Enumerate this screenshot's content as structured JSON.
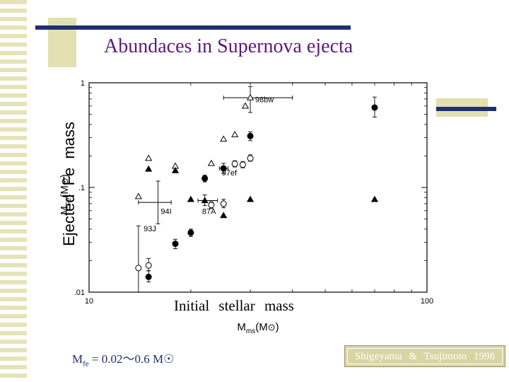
{
  "slide": {
    "title": "Abundaces in Supernova ejecta",
    "overlay_xlabel": "Initial  stellar  mass",
    "overlay_ylabel": "Ejected  Fe  mass",
    "formula": {
      "lead": "M",
      "sub": "fe",
      "rest": " = 0.02〜0.6 M",
      "sun_symbol": "☉"
    },
    "credit": "Shigeyama  &  Tsujimoto  1998",
    "colors": {
      "title": "#5a1a7a",
      "accent_bar": "#1e2f6e",
      "decor": "#e2dfb0"
    }
  },
  "chart_data": {
    "type": "scatter",
    "x_scale": "log",
    "y_scale": "log",
    "xlim": [
      10,
      100
    ],
    "ylim": [
      0.01,
      1
    ],
    "xlabel": {
      "main": "M",
      "sub": "ms",
      "suffix": "(M",
      "suffix_sub": "⊙",
      "close": ")"
    },
    "ylabel": {
      "main": "M",
      "sub": "Fe",
      "suffix": "(M",
      "suffix_sub": "⊙",
      "close": ")"
    },
    "x_ticks": [
      {
        "v": 10,
        "label": "10"
      },
      {
        "v": 100,
        "label": "100"
      }
    ],
    "y_ticks": [
      {
        "v": 0.01,
        "label": ".01"
      },
      {
        "v": 0.1,
        "label": ".1"
      },
      {
        "v": 1,
        "label": "1"
      }
    ],
    "series": [
      {
        "marker": "filled-circle",
        "points": [
          {
            "x": 15,
            "y": 0.014,
            "ylo": 0.0125,
            "yhi": 0.016
          },
          {
            "x": 18,
            "y": 0.029,
            "ylo": 0.026,
            "yhi": 0.032
          },
          {
            "x": 20,
            "y": 0.037,
            "ylo": 0.034,
            "yhi": 0.04
          },
          {
            "x": 22,
            "y": 0.122,
            "ylo": 0.113,
            "yhi": 0.131
          },
          {
            "x": 25,
            "y": 0.152,
            "ylo": 0.136,
            "yhi": 0.17,
            "xlo": 24.3,
            "xhi": 25.8
          },
          {
            "x": 30,
            "y": 0.31,
            "ylo": 0.28,
            "yhi": 0.34
          },
          {
            "x": 70,
            "y": 0.58,
            "ylo": 0.47,
            "yhi": 0.73
          }
        ]
      },
      {
        "marker": "open-circle",
        "points": [
          {
            "x": 14,
            "y": 0.017,
            "ylo": 0.01,
            "yhi": 0.043
          },
          {
            "x": 15,
            "y": 0.018,
            "ylo": 0.016,
            "yhi": 0.021
          },
          {
            "x": 23,
            "y": 0.068,
            "ylo": 0.063,
            "yhi": 0.073
          },
          {
            "x": 25,
            "y": 0.07,
            "ylo": 0.064,
            "yhi": 0.077
          },
          {
            "x": 27,
            "y": 0.168,
            "ylo": 0.157,
            "yhi": 0.18
          },
          {
            "x": 28.5,
            "y": 0.165,
            "ylo": 0.154,
            "yhi": 0.177
          },
          {
            "x": 30,
            "y": 0.19,
            "ylo": 0.178,
            "yhi": 0.205
          }
        ]
      },
      {
        "marker": "open-triangle",
        "points": [
          {
            "x": 15,
            "y": 0.19
          },
          {
            "x": 18,
            "y": 0.16
          },
          {
            "x": 23,
            "y": 0.17
          },
          {
            "x": 25,
            "y": 0.29
          },
          {
            "x": 27,
            "y": 0.32
          },
          {
            "x": 29,
            "y": 0.6
          },
          {
            "x": 30,
            "y": 0.72,
            "ylo": 0.52,
            "yhi": 0.92,
            "xlo": 25,
            "xhi": 40
          }
        ]
      },
      {
        "marker": "filled-triangle",
        "points": [
          {
            "x": 15,
            "y": 0.15
          },
          {
            "x": 18,
            "y": 0.145
          },
          {
            "x": 20,
            "y": 0.077
          },
          {
            "x": 22,
            "y": 0.075
          },
          {
            "x": 25,
            "y": 0.054
          },
          {
            "x": 30,
            "y": 0.077
          },
          {
            "x": 70,
            "y": 0.077
          }
        ]
      },
      {
        "marker": "open-triangle",
        "points": [
          {
            "x": 14,
            "y": 0.082
          }
        ]
      },
      {
        "marker": "cross",
        "points": [
          {
            "x": 16,
            "y": 0.072,
            "ylo": 0.045,
            "yhi": 0.115,
            "xlo": 14,
            "xhi": 17.5
          },
          {
            "x": 22,
            "y": 0.075,
            "ylo": 0.067,
            "yhi": 0.085,
            "xlo": 21,
            "xhi": 24
          }
        ]
      }
    ],
    "annotations": [
      {
        "text": "98bw",
        "x": 31,
        "y": 0.65
      },
      {
        "text": "97ef",
        "x": 24.7,
        "y": 0.13
      },
      {
        "text": "94I",
        "x": 16.3,
        "y": 0.056
      },
      {
        "text": "87A",
        "x": 21.6,
        "y": 0.056
      },
      {
        "text": "93J",
        "x": 14.5,
        "y": 0.038
      }
    ]
  }
}
